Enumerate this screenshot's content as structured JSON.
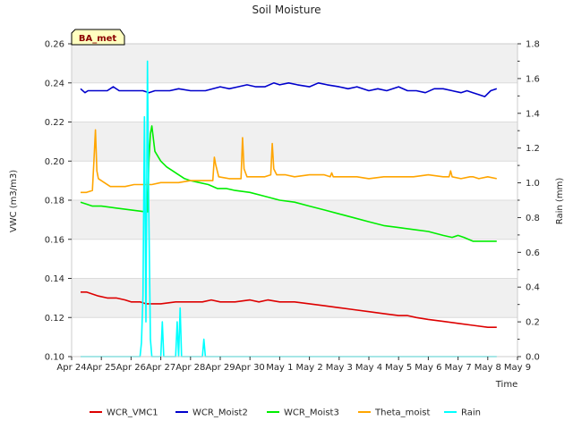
{
  "chart_data": {
    "type": "line",
    "title": "Soil Moisture",
    "badge": "BA_met",
    "xlabel": "Time",
    "ylabel_left": "VWC (m3/m3)",
    "ylabel_right": "Rain (mm)",
    "xlim": [
      0,
      15
    ],
    "ylim_left": [
      0.1,
      0.26
    ],
    "ylim_right": [
      0.0,
      1.8
    ],
    "x_ticks": [
      0,
      1,
      2,
      3,
      4,
      5,
      6,
      7,
      8,
      9,
      10,
      11,
      12,
      13,
      14,
      15
    ],
    "x_tick_labels": [
      "Apr 24",
      "Apr 25",
      "Apr 26",
      "Apr 27",
      "Apr 28",
      "Apr 29",
      "Apr 30",
      "May 1",
      "May 2",
      "May 3",
      "May 4",
      "May 5",
      "May 6",
      "May 7",
      "May 8",
      "May 9"
    ],
    "y_ticks_left": [
      "0.10",
      "0.12",
      "0.14",
      "0.16",
      "0.18",
      "0.20",
      "0.22",
      "0.24",
      "0.26"
    ],
    "y_ticks_right": [
      "0.0",
      "0.2",
      "0.4",
      "0.6",
      "0.8",
      "1.0",
      "1.2",
      "1.4",
      "1.6",
      "1.8"
    ],
    "background_bands": true,
    "legend_position": "bottom",
    "series": [
      {
        "name": "WCR_VMC1",
        "color": "#dd0000",
        "axis": "left",
        "x": [
          0.3,
          0.5,
          0.7,
          0.9,
          1.2,
          1.5,
          1.8,
          2.0,
          2.3,
          2.5,
          2.7,
          3.0,
          3.5,
          4.0,
          4.4,
          4.7,
          5.0,
          5.5,
          6.0,
          6.3,
          6.6,
          7.0,
          7.5,
          8.0,
          8.5,
          9.0,
          9.5,
          10.0,
          10.5,
          11.0,
          11.3,
          11.6,
          12.0,
          12.5,
          13.0,
          13.5,
          14.0,
          14.3
        ],
        "values": [
          0.133,
          0.133,
          0.132,
          0.131,
          0.13,
          0.13,
          0.129,
          0.128,
          0.128,
          0.127,
          0.127,
          0.127,
          0.128,
          0.128,
          0.128,
          0.129,
          0.128,
          0.128,
          0.129,
          0.128,
          0.129,
          0.128,
          0.128,
          0.127,
          0.126,
          0.125,
          0.124,
          0.123,
          0.122,
          0.121,
          0.121,
          0.12,
          0.119,
          0.118,
          0.117,
          0.116,
          0.115,
          0.115
        ]
      },
      {
        "name": "WCR_Moist2",
        "color": "#0000cc",
        "axis": "left",
        "x": [
          0.3,
          0.45,
          0.55,
          0.7,
          0.9,
          1.2,
          1.4,
          1.6,
          1.9,
          2.1,
          2.4,
          2.6,
          2.8,
          3.0,
          3.3,
          3.6,
          4.0,
          4.5,
          5.0,
          5.3,
          5.6,
          5.9,
          6.2,
          6.5,
          6.8,
          7.0,
          7.3,
          7.6,
          8.0,
          8.3,
          8.6,
          9.0,
          9.3,
          9.6,
          10.0,
          10.3,
          10.6,
          11.0,
          11.3,
          11.6,
          11.9,
          12.2,
          12.5,
          12.8,
          13.1,
          13.3,
          13.5,
          13.7,
          13.9,
          14.1,
          14.3
        ],
        "values": [
          0.237,
          0.235,
          0.236,
          0.236,
          0.236,
          0.236,
          0.238,
          0.236,
          0.236,
          0.236,
          0.236,
          0.235,
          0.236,
          0.236,
          0.236,
          0.237,
          0.236,
          0.236,
          0.238,
          0.237,
          0.238,
          0.239,
          0.238,
          0.238,
          0.24,
          0.239,
          0.24,
          0.239,
          0.238,
          0.24,
          0.239,
          0.238,
          0.237,
          0.238,
          0.236,
          0.237,
          0.236,
          0.238,
          0.236,
          0.236,
          0.235,
          0.237,
          0.237,
          0.236,
          0.235,
          0.236,
          0.235,
          0.234,
          0.233,
          0.236,
          0.237
        ]
      },
      {
        "name": "WCR_Moist3",
        "color": "#00ee00",
        "axis": "left",
        "x": [
          0.3,
          0.5,
          0.7,
          1.0,
          1.5,
          2.0,
          2.5,
          2.55,
          2.6,
          2.65,
          2.7,
          2.8,
          3.0,
          3.2,
          3.4,
          3.6,
          3.8,
          4.0,
          4.3,
          4.6,
          4.9,
          5.2,
          5.5,
          6.0,
          6.5,
          7.0,
          7.5,
          8.0,
          8.5,
          9.0,
          9.5,
          10.0,
          10.5,
          11.0,
          11.5,
          12.0,
          12.5,
          12.8,
          13.0,
          13.2,
          13.5,
          14.0,
          14.3
        ],
        "values": [
          0.179,
          0.178,
          0.177,
          0.177,
          0.176,
          0.175,
          0.174,
          0.174,
          0.2,
          0.214,
          0.218,
          0.205,
          0.2,
          0.197,
          0.195,
          0.193,
          0.191,
          0.19,
          0.189,
          0.188,
          0.186,
          0.186,
          0.185,
          0.184,
          0.182,
          0.18,
          0.179,
          0.177,
          0.175,
          0.173,
          0.171,
          0.169,
          0.167,
          0.166,
          0.165,
          0.164,
          0.162,
          0.161,
          0.162,
          0.161,
          0.159,
          0.159,
          0.159
        ]
      },
      {
        "name": "Theta_moist",
        "color": "#ffa500",
        "axis": "left",
        "x": [
          0.3,
          0.5,
          0.7,
          0.75,
          0.8,
          0.85,
          0.9,
          1.1,
          1.3,
          1.5,
          1.8,
          2.1,
          2.4,
          2.7,
          3.0,
          3.3,
          3.6,
          4.0,
          4.3,
          4.6,
          4.75,
          4.8,
          4.85,
          4.95,
          5.3,
          5.6,
          5.7,
          5.75,
          5.8,
          5.9,
          6.2,
          6.5,
          6.7,
          6.75,
          6.8,
          6.9,
          7.2,
          7.5,
          8.0,
          8.5,
          8.7,
          8.75,
          8.8,
          9.2,
          9.6,
          10.0,
          10.5,
          11.0,
          11.5,
          12.0,
          12.5,
          12.7,
          12.75,
          12.8,
          13.1,
          13.4,
          13.5,
          13.7,
          14.0,
          14.3
        ],
        "values": [
          0.184,
          0.184,
          0.185,
          0.2,
          0.216,
          0.195,
          0.191,
          0.189,
          0.187,
          0.187,
          0.187,
          0.188,
          0.188,
          0.188,
          0.189,
          0.189,
          0.189,
          0.19,
          0.19,
          0.19,
          0.19,
          0.202,
          0.198,
          0.192,
          0.191,
          0.191,
          0.191,
          0.212,
          0.196,
          0.192,
          0.192,
          0.192,
          0.193,
          0.209,
          0.196,
          0.193,
          0.193,
          0.192,
          0.193,
          0.193,
          0.192,
          0.194,
          0.192,
          0.192,
          0.192,
          0.191,
          0.192,
          0.192,
          0.192,
          0.193,
          0.192,
          0.192,
          0.195,
          0.192,
          0.191,
          0.192,
          0.192,
          0.191,
          0.192,
          0.191
        ]
      },
      {
        "name": "Rain",
        "color": "#00ffff",
        "axis": "right",
        "x": [
          0.3,
          2.3,
          2.35,
          2.4,
          2.45,
          2.5,
          2.55,
          2.6,
          2.65,
          2.7,
          2.75,
          2.8,
          2.85,
          3.0,
          3.05,
          3.1,
          3.15,
          3.5,
          3.55,
          3.6,
          3.65,
          3.7,
          3.75,
          4.4,
          4.45,
          4.5,
          14.3
        ],
        "values": [
          0.0,
          0.0,
          0.08,
          0.35,
          1.38,
          0.2,
          1.7,
          0.8,
          0.1,
          0.0,
          0.0,
          0.0,
          0.0,
          0.0,
          0.2,
          0.0,
          0.0,
          0.0,
          0.2,
          0.0,
          0.28,
          0.0,
          0.0,
          0.0,
          0.1,
          0.0,
          0.0
        ]
      }
    ]
  }
}
